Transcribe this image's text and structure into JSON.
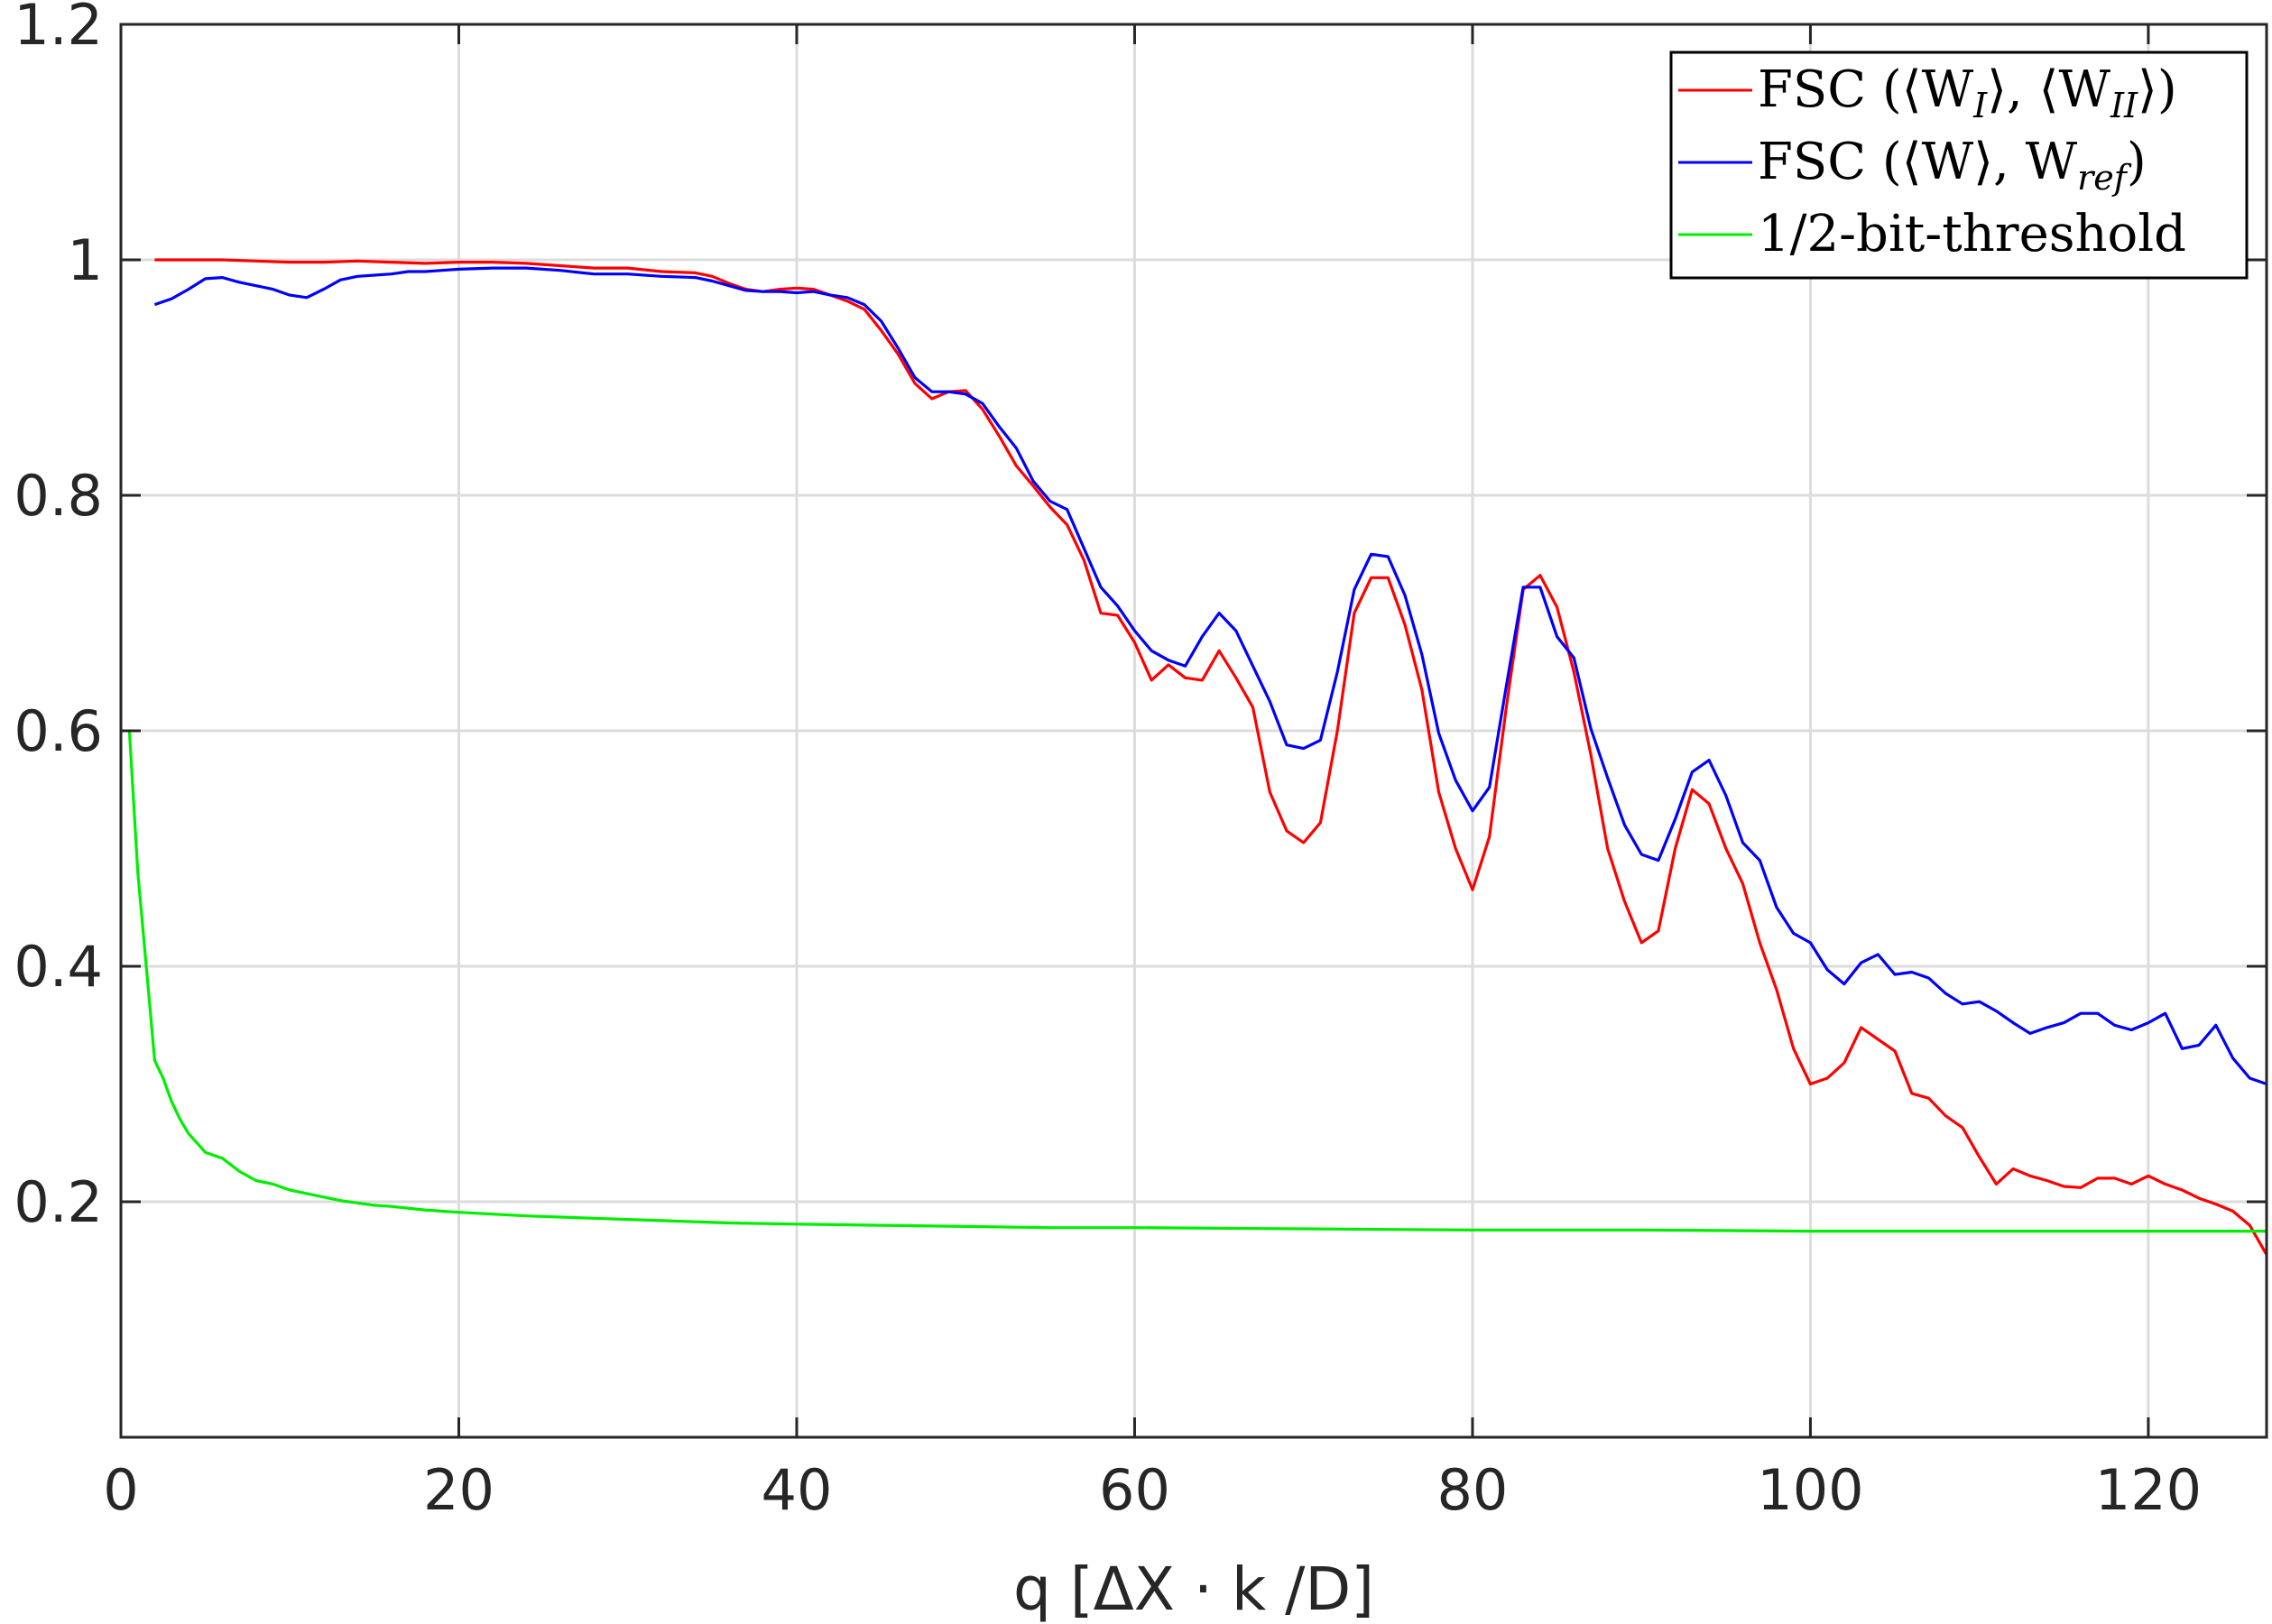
{
  "chart_data": {
    "type": "line",
    "xlabel": "q [ΔX · k /D]",
    "ylabel": "",
    "title": "",
    "xlim": [
      0,
      127
    ],
    "ylim": [
      0,
      1.2
    ],
    "xticks": [
      0,
      20,
      40,
      60,
      80,
      100,
      120
    ],
    "yticks": [
      0.2,
      0.4,
      0.6,
      0.8,
      1,
      1.2
    ],
    "xtick_labels": [
      "0",
      "20",
      "40",
      "60",
      "80",
      "100",
      "120"
    ],
    "ytick_labels": [
      "0.2",
      "0.4",
      "0.6",
      "0.8",
      "1",
      "1.2"
    ],
    "grid": true,
    "legend_position": "top-right",
    "series": [
      {
        "name": "FSC (⟨W_I⟩, ⟨W_II⟩)",
        "label_main": "FSC (⟨W",
        "label_sub1": "I",
        "label_mid": "⟩, ⟨W",
        "label_sub2": "II",
        "label_end": "⟩)",
        "color": "#ff0000",
        "x": [
          2,
          4,
          6,
          8,
          10,
          12,
          14,
          16,
          18,
          20,
          22,
          24,
          26,
          28,
          30,
          32,
          34,
          35,
          36,
          37,
          38,
          39,
          40,
          41,
          42,
          43,
          44,
          45,
          46,
          47,
          48,
          49,
          50,
          51,
          52,
          53,
          54,
          55,
          56,
          57,
          58,
          59,
          60,
          61,
          62,
          63,
          64,
          65,
          66,
          67,
          68,
          69,
          70,
          71,
          72,
          73,
          74,
          75,
          76,
          77,
          78,
          79,
          80,
          81,
          82,
          83,
          84,
          85,
          86,
          87,
          88,
          89,
          90,
          91,
          92,
          93,
          94,
          95,
          96,
          97,
          98,
          99,
          100,
          101,
          102,
          103,
          104,
          105,
          106,
          107,
          108,
          109,
          110,
          111,
          112,
          113,
          114,
          115,
          116,
          117,
          118,
          119,
          120,
          121,
          122,
          123,
          124,
          125,
          126,
          127
        ],
        "values": [
          1.0,
          1.0,
          1.0,
          0.999,
          0.998,
          0.998,
          0.999,
          0.998,
          0.997,
          0.998,
          0.998,
          0.997,
          0.995,
          0.993,
          0.993,
          0.99,
          0.989,
          0.986,
          0.98,
          0.975,
          0.973,
          0.975,
          0.976,
          0.975,
          0.97,
          0.965,
          0.958,
          0.94,
          0.92,
          0.895,
          0.882,
          0.888,
          0.889,
          0.873,
          0.85,
          0.825,
          0.808,
          0.79,
          0.775,
          0.745,
          0.7,
          0.698,
          0.675,
          0.643,
          0.656,
          0.645,
          0.643,
          0.668,
          0.645,
          0.62,
          0.548,
          0.515,
          0.505,
          0.522,
          0.6,
          0.7,
          0.73,
          0.73,
          0.69,
          0.635,
          0.548,
          0.5,
          0.465,
          0.51,
          0.62,
          0.72,
          0.732,
          0.705,
          0.65,
          0.58,
          0.5,
          0.455,
          0.42,
          0.43,
          0.5,
          0.55,
          0.538,
          0.5,
          0.47,
          0.42,
          0.38,
          0.33,
          0.3,
          0.305,
          0.318,
          0.348,
          0.338,
          0.328,
          0.292,
          0.288,
          0.273,
          0.263,
          0.238,
          0.215,
          0.228,
          0.222,
          0.218,
          0.213,
          0.212,
          0.22,
          0.22,
          0.215,
          0.222,
          0.215,
          0.21,
          0.203,
          0.198,
          0.192,
          0.18,
          0.155
        ]
      },
      {
        "name": "FSC (⟨W⟩, W_ref)",
        "label_main": "FSC (⟨W⟩, W",
        "label_sub1": "ref",
        "label_end": ")",
        "color": "#0000ff",
        "x": [
          2,
          3,
          4,
          5,
          6,
          7,
          8,
          9,
          10,
          11,
          12,
          13,
          14,
          15,
          16,
          17,
          18,
          19,
          20,
          22,
          24,
          26,
          28,
          30,
          32,
          34,
          35,
          36,
          37,
          38,
          39,
          40,
          41,
          42,
          43,
          44,
          45,
          46,
          47,
          48,
          49,
          50,
          51,
          52,
          53,
          54,
          55,
          56,
          57,
          58,
          59,
          60,
          61,
          62,
          63,
          64,
          65,
          66,
          67,
          68,
          69,
          70,
          71,
          72,
          73,
          74,
          75,
          76,
          77,
          78,
          79,
          80,
          81,
          82,
          83,
          84,
          85,
          86,
          87,
          88,
          89,
          90,
          91,
          92,
          93,
          94,
          95,
          96,
          97,
          98,
          99,
          100,
          101,
          102,
          103,
          104,
          105,
          106,
          107,
          108,
          109,
          110,
          111,
          112,
          113,
          114,
          115,
          116,
          117,
          118,
          119,
          120,
          121,
          122,
          123,
          124,
          125,
          126,
          127
        ],
        "values": [
          0.962,
          0.967,
          0.975,
          0.984,
          0.985,
          0.981,
          0.978,
          0.975,
          0.97,
          0.968,
          0.975,
          0.983,
          0.986,
          0.987,
          0.988,
          0.99,
          0.99,
          0.991,
          0.992,
          0.993,
          0.993,
          0.991,
          0.988,
          0.988,
          0.986,
          0.985,
          0.982,
          0.978,
          0.974,
          0.973,
          0.973,
          0.972,
          0.973,
          0.97,
          0.968,
          0.962,
          0.948,
          0.925,
          0.9,
          0.888,
          0.888,
          0.886,
          0.878,
          0.858,
          0.84,
          0.812,
          0.795,
          0.788,
          0.755,
          0.722,
          0.706,
          0.685,
          0.668,
          0.66,
          0.655,
          0.68,
          0.7,
          0.685,
          0.655,
          0.625,
          0.588,
          0.585,
          0.592,
          0.65,
          0.72,
          0.75,
          0.748,
          0.715,
          0.665,
          0.598,
          0.558,
          0.532,
          0.552,
          0.638,
          0.722,
          0.722,
          0.68,
          0.662,
          0.602,
          0.56,
          0.52,
          0.495,
          0.49,
          0.525,
          0.565,
          0.575,
          0.545,
          0.505,
          0.49,
          0.45,
          0.428,
          0.42,
          0.397,
          0.385,
          0.403,
          0.41,
          0.393,
          0.395,
          0.39,
          0.377,
          0.368,
          0.37,
          0.362,
          0.352,
          0.343,
          0.348,
          0.352,
          0.36,
          0.36,
          0.35,
          0.346,
          0.352,
          0.36,
          0.33,
          0.333,
          0.35,
          0.322,
          0.305,
          0.3
        ]
      },
      {
        "name": "1/2-bit-threshold",
        "color": "#00ee00",
        "x": [
          0.5,
          1,
          1.5,
          2,
          2.5,
          3,
          3.5,
          4,
          5,
          6,
          7,
          8,
          9,
          10,
          11,
          12,
          13,
          14,
          15,
          16,
          18,
          20,
          24,
          28,
          32,
          36,
          40,
          45,
          50,
          55,
          60,
          70,
          80,
          90,
          100,
          110,
          120,
          127
        ],
        "values": [
          0.6,
          0.48,
          0.4,
          0.32,
          0.305,
          0.285,
          0.27,
          0.258,
          0.242,
          0.237,
          0.226,
          0.218,
          0.215,
          0.21,
          0.207,
          0.204,
          0.201,
          0.199,
          0.197,
          0.196,
          0.193,
          0.191,
          0.188,
          0.186,
          0.184,
          0.182,
          0.181,
          0.18,
          0.179,
          0.178,
          0.178,
          0.177,
          0.176,
          0.176,
          0.175,
          0.175,
          0.175,
          0.175
        ]
      }
    ]
  }
}
